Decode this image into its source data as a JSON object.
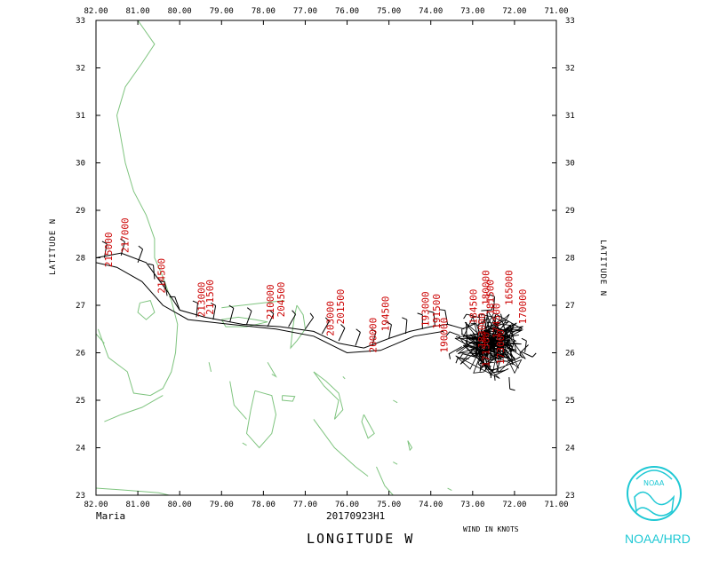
{
  "map": {
    "storm_name": "Maria",
    "flight_id": "20170923H1",
    "x_axis_title": "LONGITUDE  W",
    "y_axis_title_left": "LATITUDE  N",
    "y_axis_title_right": "LATITUDE  N",
    "wind_units": "WIND IN KNOTS",
    "lon_range": [
      -82.0,
      -71.0
    ],
    "lat_range": [
      23,
      33
    ],
    "lon_ticks": [
      "82.00",
      "81.00",
      "80.00",
      "79.00",
      "78.00",
      "77.00",
      "76.00",
      "75.00",
      "74.00",
      "73.00",
      "72.00",
      "71.00"
    ],
    "lat_ticks": [
      "23",
      "24",
      "25",
      "26",
      "27",
      "28",
      "29",
      "30",
      "31",
      "32",
      "33"
    ],
    "colors": {
      "coastline": "#7fc47f",
      "track": "#000000",
      "labels": "#cc0000",
      "logo": "#1ec8d4"
    }
  },
  "logo": {
    "text": "NOAA/HRD",
    "emblem_text": "NOAA"
  },
  "observations": [
    {
      "text": "215000",
      "lon": -81.62,
      "lat": 27.8
    },
    {
      "text": "217000",
      "lon": -81.22,
      "lat": 28.1
    },
    {
      "text": "214500",
      "lon": -80.35,
      "lat": 27.25
    },
    {
      "text": "213000",
      "lon": -79.4,
      "lat": 26.75
    },
    {
      "text": "211500",
      "lon": -79.2,
      "lat": 26.8
    },
    {
      "text": "210000",
      "lon": -77.75,
      "lat": 26.7
    },
    {
      "text": "204500",
      "lon": -77.5,
      "lat": 26.75
    },
    {
      "text": "203000",
      "lon": -76.32,
      "lat": 26.35
    },
    {
      "text": "201500",
      "lon": -76.08,
      "lat": 26.6
    },
    {
      "text": "200000",
      "lon": -75.3,
      "lat": 26.0
    },
    {
      "text": "194500",
      "lon": -75.0,
      "lat": 26.45
    },
    {
      "text": "193000",
      "lon": -74.05,
      "lat": 26.55
    },
    {
      "text": "191500",
      "lon": -73.78,
      "lat": 26.5
    },
    {
      "text": "190000",
      "lon": -73.6,
      "lat": 26.0
    },
    {
      "text": "184500",
      "lon": -72.9,
      "lat": 26.6
    },
    {
      "text": "183000",
      "lon": -72.7,
      "lat": 26.1
    },
    {
      "text": "181500",
      "lon": -72.5,
      "lat": 26.8
    },
    {
      "text": "180000",
      "lon": -72.6,
      "lat": 27.0
    },
    {
      "text": "174500",
      "lon": -72.35,
      "lat": 26.3
    },
    {
      "text": "173000",
      "lon": -72.25,
      "lat": 25.75
    },
    {
      "text": "171500",
      "lon": -72.6,
      "lat": 25.7
    },
    {
      "text": "170000",
      "lon": -71.72,
      "lat": 26.6
    },
    {
      "text": "165000",
      "lon": -72.05,
      "lat": 27.0
    }
  ]
}
